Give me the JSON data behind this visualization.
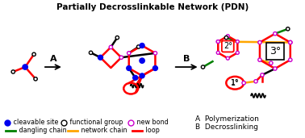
{
  "title": "Partially Decrosslinkable Network (PDN)",
  "title_fontsize": 7.5,
  "title_fontweight": "bold",
  "fig_bg": "#ffffff",
  "blue": "#0000ee",
  "red": "#ff0000",
  "green": "#008000",
  "orange": "#ffa500",
  "black": "#000000",
  "magenta": "#cc00cc",
  "legend_right_row1": "A  Polymerization",
  "legend_right_row2": "B  Decrosslinking"
}
